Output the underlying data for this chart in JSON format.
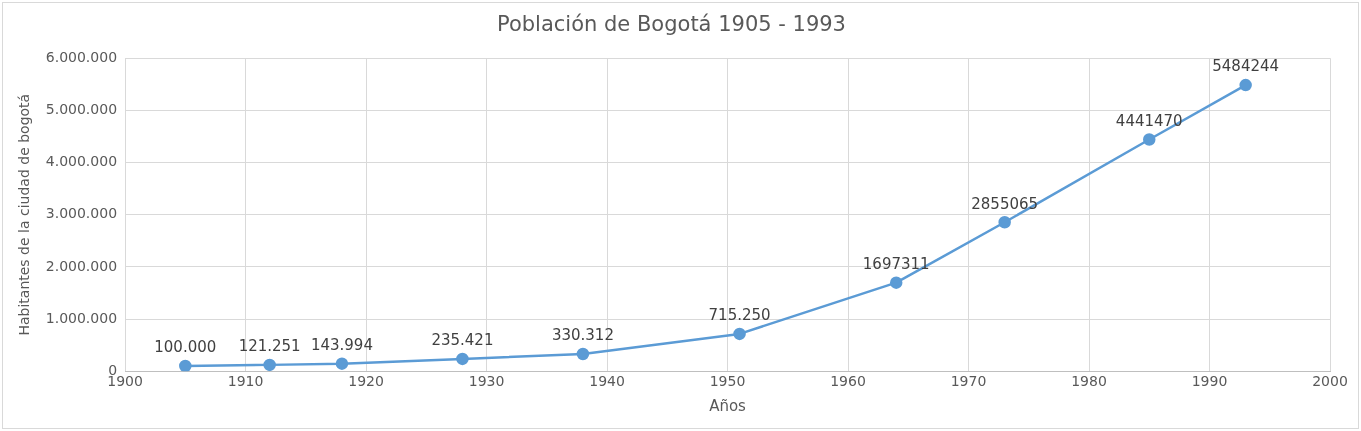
{
  "chart_data": {
    "type": "line",
    "title": "Población de Bogotá 1905 - 1993",
    "xlabel": "Años",
    "ylabel": "Habitantes de la ciudad de bogotá",
    "x": [
      1905,
      1912,
      1918,
      1928,
      1938,
      1951,
      1964,
      1973,
      1985,
      1993
    ],
    "series": [
      {
        "color": "#5b9bd5",
        "values": [
          100000,
          121251,
          143994,
          235421,
          330312,
          715250,
          1697311,
          2855065,
          4441470,
          5484244
        ],
        "value_labels": [
          "100.000",
          "121.251",
          "143.994",
          "235.421",
          "330.312",
          "715.250",
          "1697311",
          "2855065",
          "4441470",
          "5484244"
        ]
      }
    ],
    "xlim": [
      1900,
      2000
    ],
    "xticks": [
      1900,
      1910,
      1920,
      1930,
      1940,
      1950,
      1960,
      1970,
      1980,
      1990,
      2000
    ],
    "ylim": [
      0,
      6000000
    ],
    "yticks": [
      0,
      {
        "value": 1000000,
        "label": "1.000.000"
      },
      {
        "value": 2000000,
        "label": "2.000.000"
      },
      {
        "value": 3000000,
        "label": "3.000.000"
      },
      {
        "value": 4000000,
        "label": "4.000.000"
      },
      {
        "value": 5000000,
        "label": "5.000.000"
      },
      {
        "value": 6000000,
        "label": "6.000.000"
      }
    ],
    "grid": true,
    "legend": false,
    "marker": "circle",
    "line_style": "solid"
  }
}
